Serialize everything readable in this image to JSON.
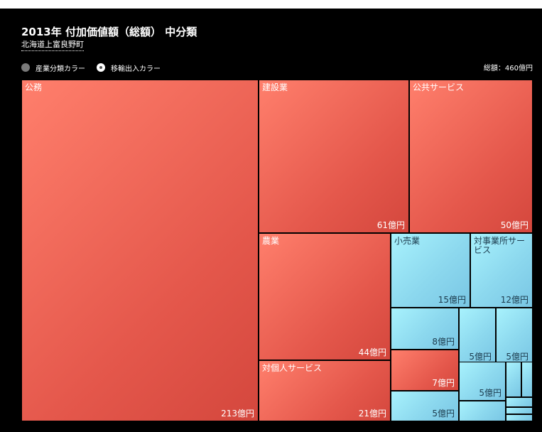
{
  "header": {
    "title": "2013年 付加価値額（総額） 中分類",
    "subtitle": "北海道上富良野町"
  },
  "controls": {
    "industry_color_label": "産業分類カラー",
    "trade_color_label": "移輸出入カラー",
    "selected": "移輸出入カラー"
  },
  "total_label": "総額：460億円",
  "colors": {
    "export_industry": "#f06a5a",
    "import_industry": "#8fd9ef",
    "background": "#000000"
  },
  "chart_data": {
    "type": "treemap",
    "title": "2013年 付加価値額（総額） 中分類",
    "subtitle": "北海道上富良野町",
    "unit": "億円",
    "total": 460,
    "items": [
      {
        "name": "公務",
        "value": 213,
        "value_label": "213億円",
        "color": "red"
      },
      {
        "name": "建設業",
        "value": 61,
        "value_label": "61億円",
        "color": "red"
      },
      {
        "name": "公共サービス",
        "value": 50,
        "value_label": "50億円",
        "color": "red"
      },
      {
        "name": "農業",
        "value": 44,
        "value_label": "44億円",
        "color": "red"
      },
      {
        "name": "対個人サービス",
        "value": 21,
        "value_label": "21億円",
        "color": "red"
      },
      {
        "name": "小売業",
        "value": 15,
        "value_label": "15億円",
        "color": "blue"
      },
      {
        "name": "対事業所サービス",
        "value": 12,
        "value_label": "12億円",
        "color": "blue"
      },
      {
        "name": "",
        "value": 8,
        "value_label": "8億円",
        "color": "blue"
      },
      {
        "name": "",
        "value": 5,
        "value_label": "5億円",
        "color": "blue"
      },
      {
        "name": "",
        "value": 5,
        "value_label": "5億円",
        "color": "blue"
      },
      {
        "name": "",
        "value": 7,
        "value_label": "7億円",
        "color": "red"
      },
      {
        "name": "",
        "value": 5,
        "value_label": "5億円",
        "color": "blue"
      },
      {
        "name": "",
        "value": 5,
        "value_label": "5億円",
        "color": "blue"
      },
      {
        "name": "",
        "value": 2,
        "value_label": "",
        "color": "blue"
      },
      {
        "name": "",
        "value": 2,
        "value_label": "",
        "color": "blue"
      },
      {
        "name": "",
        "value": 1,
        "value_label": "",
        "color": "blue"
      },
      {
        "name": "",
        "value": 1,
        "value_label": "",
        "color": "blue"
      },
      {
        "name": "",
        "value": 1,
        "value_label": "",
        "color": "blue"
      },
      {
        "name": "",
        "value": 1,
        "value_label": "",
        "color": "blue"
      }
    ]
  }
}
